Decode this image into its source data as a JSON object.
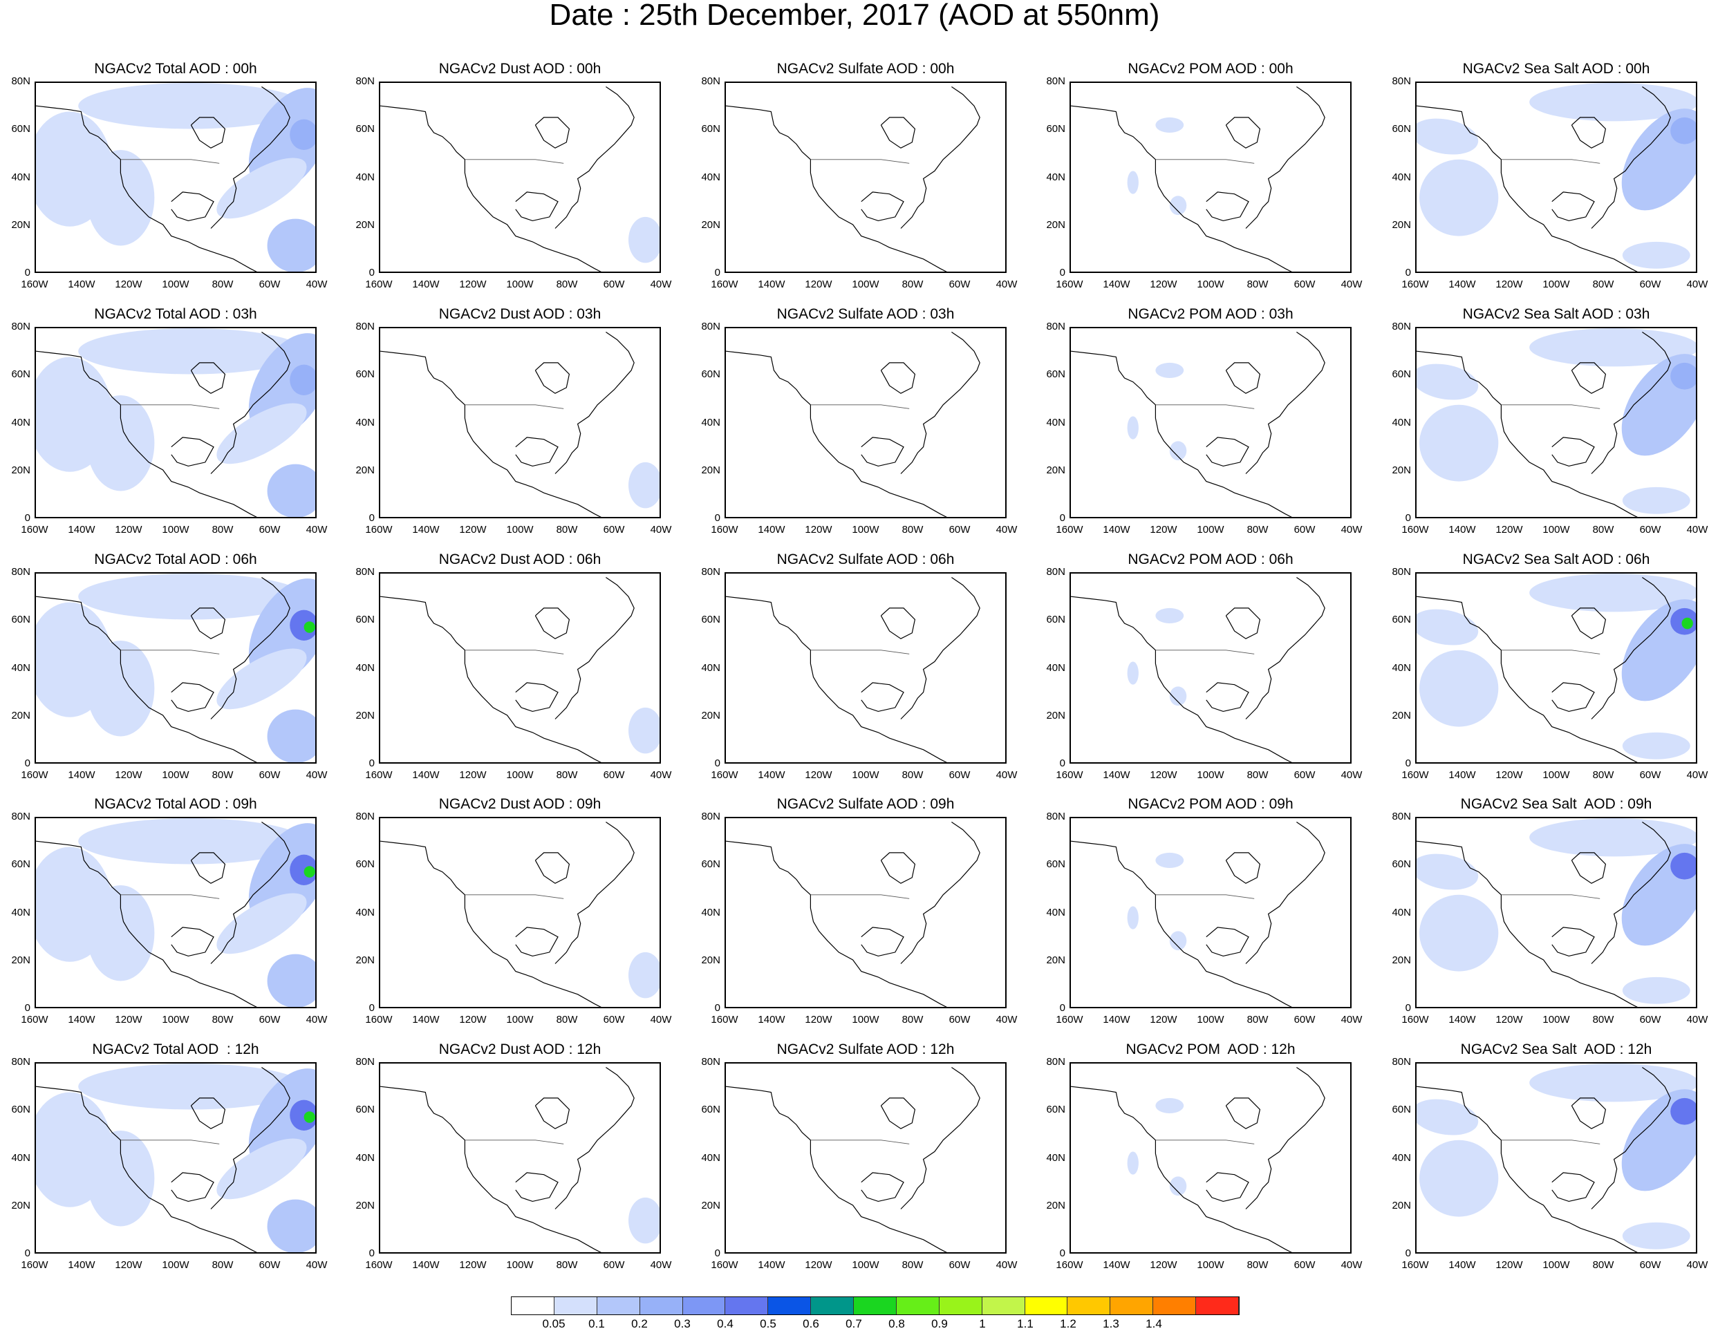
{
  "main_title": "Date : 25th December, 2017 (AOD at 550nm)",
  "lat_ticks": [
    "80N",
    "60N",
    "40N",
    "20N",
    "0"
  ],
  "lon_ticks": [
    "160W",
    "140W",
    "120W",
    "100W",
    "80W",
    "60W",
    "40W"
  ],
  "panel_titles": [
    [
      "NGACv2 Total AOD : 00h",
      "NGACv2 Dust AOD : 00h",
      "NGACv2 Sulfate AOD : 00h",
      "NGACv2 POM AOD : 00h",
      "NGACv2 Sea Salt AOD : 00h"
    ],
    [
      "NGACv2 Total AOD : 03h",
      "NGACv2 Dust AOD : 03h",
      "NGACv2 Sulfate AOD : 03h",
      "NGACv2 POM AOD : 03h",
      "NGACv2 Sea Salt AOD : 03h"
    ],
    [
      "NGACv2 Total AOD : 06h",
      "NGACv2 Dust AOD : 06h",
      "NGACv2 Sulfate AOD : 06h",
      "NGACv2 POM AOD : 06h",
      "NGACv2 Sea Salt AOD : 06h"
    ],
    [
      "NGACv2 Total AOD : 09h",
      "NGACv2 Dust AOD : 09h",
      "NGACv2 Sulfate AOD : 09h",
      "NGACv2 POM AOD : 09h",
      "NGACv2 Sea Salt  AOD : 09h"
    ],
    [
      "NGACv2 Total AOD  : 12h",
      "NGACv2 Dust AOD : 12h",
      "NGACv2 Sulfate AOD : 12h",
      "NGACv2 POM  AOD : 12h",
      "NGACv2 Sea Salt  AOD : 12h"
    ]
  ],
  "colorbar": {
    "labels": [
      "0.05",
      "0.1",
      "0.2",
      "0.3",
      "0.4",
      "0.5",
      "0.6",
      "0.7",
      "0.8",
      "0.9",
      "1",
      "1.1",
      "1.2",
      "1.3",
      "1.4"
    ],
    "colors": [
      "#ffffff",
      "#d4e0fc",
      "#b3c7fa",
      "#97b1f8",
      "#7d97f5",
      "#6476ef",
      "#0a55e6",
      "#00968a",
      "#1ad620",
      "#66ee18",
      "#99f31a",
      "#c2f54a",
      "#ffff00",
      "#ffc800",
      "#ffa500",
      "#ff7f00",
      "#ff2a1a"
    ]
  },
  "plume_colors": {
    "light": "#d4e0fc",
    "mid": "#b3c7fa",
    "strong": "#97b1f8",
    "peak": "#6476ef",
    "green": "#1ad620"
  }
}
